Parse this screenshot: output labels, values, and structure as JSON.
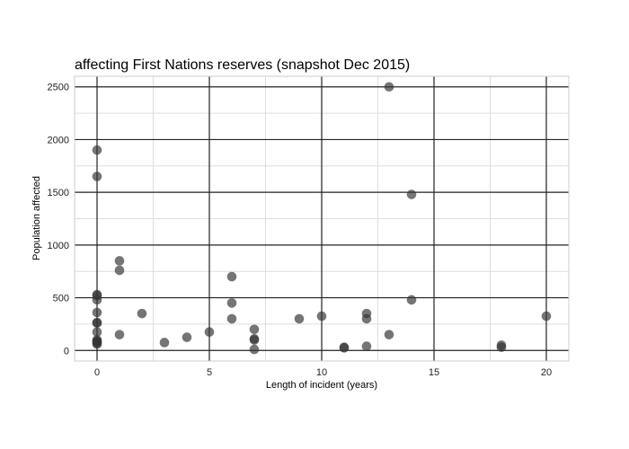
{
  "chart_data": {
    "type": "scatter",
    "title": "affecting First Nations reserves (snapshot Dec 2015)",
    "xlabel": "Length of incident (years)",
    "ylabel": "Population affected",
    "xlim": [
      -1,
      21
    ],
    "ylim": [
      -100,
      2600
    ],
    "x_ticks": [
      0,
      5,
      10,
      15,
      20
    ],
    "y_ticks": [
      0,
      500,
      1000,
      1500,
      2000,
      2500
    ],
    "x_tick_labels": [
      "0",
      "5",
      "10",
      "15",
      "20"
    ],
    "y_tick_labels": [
      "0",
      "500",
      "1000",
      "1500",
      "2000",
      "2500"
    ],
    "grid": true,
    "point_color": "#333333",
    "points": [
      {
        "x": 0,
        "y": 1900
      },
      {
        "x": 0,
        "y": 1650
      },
      {
        "x": 0,
        "y": 530
      },
      {
        "x": 0,
        "y": 520
      },
      {
        "x": 0,
        "y": 480
      },
      {
        "x": 0,
        "y": 360
      },
      {
        "x": 0,
        "y": 265
      },
      {
        "x": 0,
        "y": 260
      },
      {
        "x": 0,
        "y": 175
      },
      {
        "x": 0,
        "y": 100
      },
      {
        "x": 0,
        "y": 90
      },
      {
        "x": 0,
        "y": 80
      },
      {
        "x": 0,
        "y": 70
      },
      {
        "x": 0,
        "y": 60
      },
      {
        "x": 1,
        "y": 850
      },
      {
        "x": 1,
        "y": 760
      },
      {
        "x": 1,
        "y": 150
      },
      {
        "x": 2,
        "y": 350
      },
      {
        "x": 3,
        "y": 75
      },
      {
        "x": 4,
        "y": 125
      },
      {
        "x": 5,
        "y": 175
      },
      {
        "x": 6,
        "y": 700
      },
      {
        "x": 6,
        "y": 450
      },
      {
        "x": 6,
        "y": 300
      },
      {
        "x": 7,
        "y": 200
      },
      {
        "x": 7,
        "y": 110
      },
      {
        "x": 7,
        "y": 100
      },
      {
        "x": 7,
        "y": 10
      },
      {
        "x": 9,
        "y": 300
      },
      {
        "x": 10,
        "y": 325
      },
      {
        "x": 11,
        "y": 30
      },
      {
        "x": 11,
        "y": 25
      },
      {
        "x": 12,
        "y": 350
      },
      {
        "x": 12,
        "y": 300
      },
      {
        "x": 12,
        "y": 40
      },
      {
        "x": 13,
        "y": 2500
      },
      {
        "x": 13,
        "y": 150
      },
      {
        "x": 14,
        "y": 1480
      },
      {
        "x": 14,
        "y": 480
      },
      {
        "x": 18,
        "y": 50
      },
      {
        "x": 18,
        "y": 30
      },
      {
        "x": 20,
        "y": 325
      }
    ]
  }
}
